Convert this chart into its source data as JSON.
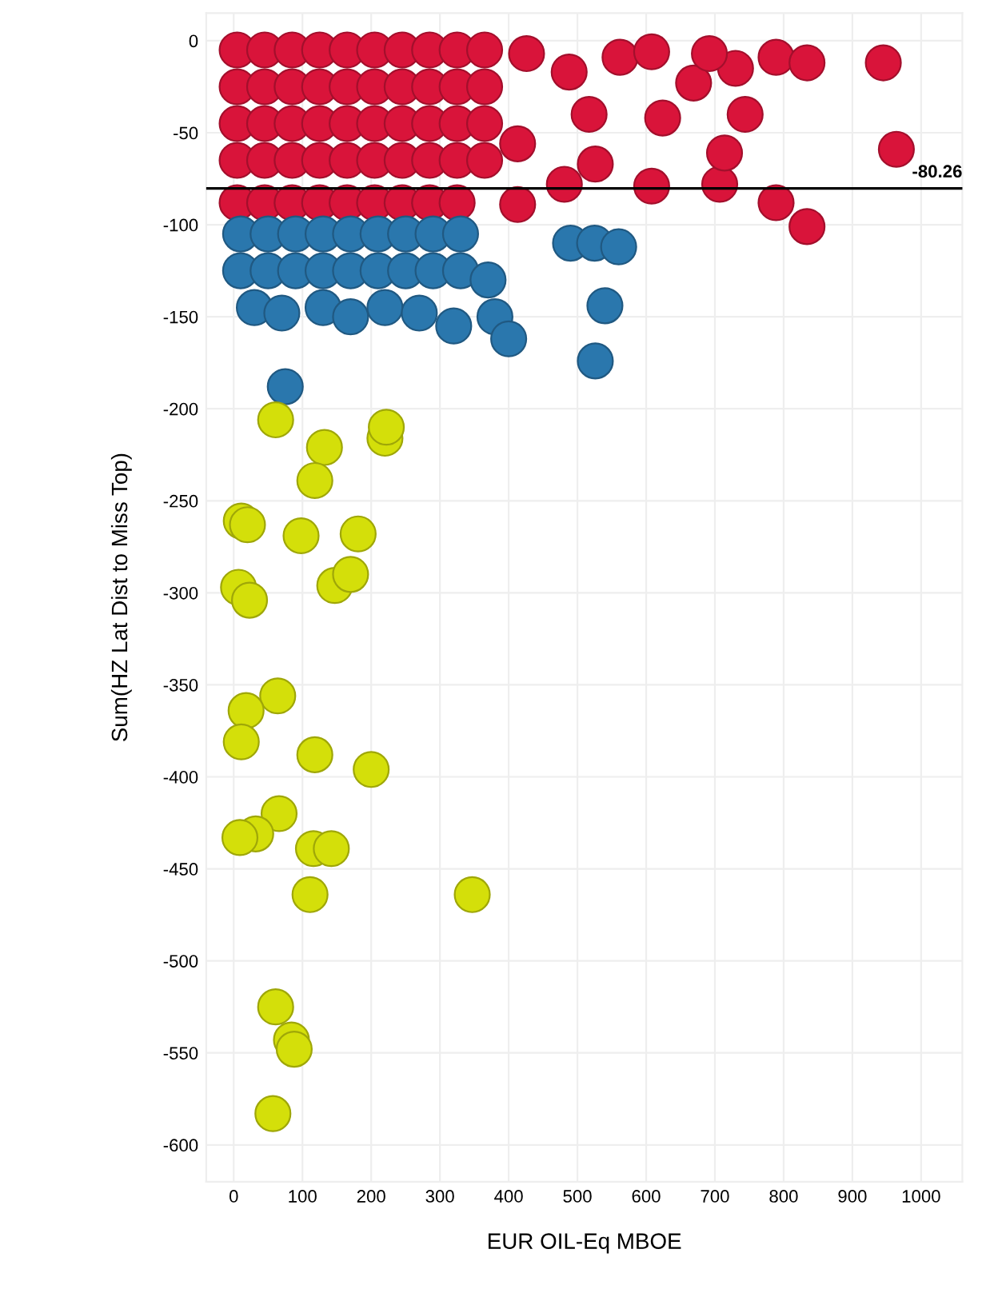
{
  "chart_data": {
    "type": "scatter",
    "xlabel": "EUR OIL-Eq MBOE",
    "ylabel": "Sum(HZ Lat Dist to Miss Top)",
    "xlim": [
      -40,
      1060
    ],
    "xticks": [
      0,
      100,
      200,
      300,
      400,
      500,
      600,
      700,
      800,
      900,
      1000
    ],
    "ylim": [
      -620,
      15
    ],
    "yticks": [
      0,
      -50,
      -100,
      -150,
      -200,
      -250,
      -300,
      -350,
      -400,
      -450,
      -500,
      -550,
      -600
    ],
    "grid": true,
    "marker": "circle",
    "ref_lines": [
      {
        "axis": "y",
        "value": -80.26,
        "label": "-80.26",
        "color": "#000000"
      }
    ],
    "series": [
      {
        "color": "#d9143a",
        "x": [
          5,
          45,
          85,
          125,
          165,
          205,
          245,
          285,
          325,
          365,
          5,
          45,
          85,
          125,
          165,
          205,
          245,
          285,
          325,
          365,
          5,
          45,
          85,
          125,
          165,
          205,
          245,
          285,
          325,
          365,
          5,
          45,
          85,
          125,
          165,
          205,
          245,
          285,
          325,
          365,
          5,
          45,
          85,
          125,
          165,
          205,
          245,
          285,
          325,
          789,
          834,
          945,
          964,
          789,
          834,
          707,
          608,
          714,
          744,
          730,
          624,
          562,
          608,
          669,
          526,
          481,
          517,
          488,
          426,
          413,
          413,
          692
        ],
        "values": [
          -5,
          -5,
          -5,
          -5,
          -5,
          -5,
          -5,
          -5,
          -5,
          -5,
          -25,
          -25,
          -25,
          -25,
          -25,
          -25,
          -25,
          -25,
          -25,
          -25,
          -45,
          -45,
          -45,
          -45,
          -45,
          -45,
          -45,
          -45,
          -45,
          -45,
          -65,
          -65,
          -65,
          -65,
          -65,
          -65,
          -65,
          -65,
          -65,
          -65,
          -88,
          -88,
          -88,
          -88,
          -88,
          -88,
          -88,
          -88,
          -88,
          -9,
          -12,
          -12,
          -59,
          -88,
          -101,
          -78,
          -79,
          -61,
          -40,
          -15,
          -42,
          -9,
          -6,
          -23,
          -67,
          -78,
          -40,
          -17,
          -7,
          -56,
          -89,
          -7
        ]
      },
      {
        "color": "#2a77ad",
        "x": [
          10,
          50,
          90,
          130,
          170,
          210,
          250,
          290,
          330,
          10,
          50,
          90,
          130,
          170,
          210,
          250,
          290,
          330,
          370,
          30,
          70,
          130,
          170,
          220,
          270,
          320,
          380,
          400,
          490,
          525,
          560,
          540,
          526,
          75
        ],
        "values": [
          -105,
          -105,
          -105,
          -105,
          -105,
          -105,
          -105,
          -105,
          -105,
          -125,
          -125,
          -125,
          -125,
          -125,
          -125,
          -125,
          -125,
          -125,
          -130,
          -145,
          -148,
          -145,
          -150,
          -145,
          -148,
          -155,
          -150,
          -162,
          -110,
          -110,
          -112,
          -144,
          -174,
          -188
        ]
      },
      {
        "color": "#d4df0a",
        "x": [
          61,
          132,
          220,
          222,
          118,
          11,
          20,
          98,
          181,
          147,
          170,
          7,
          23,
          64,
          18,
          11,
          118,
          200,
          66,
          32,
          9,
          116,
          142,
          111,
          347,
          61,
          84,
          88,
          57
        ],
        "values": [
          -206,
          -221,
          -216,
          -210,
          -239,
          -261,
          -263,
          -269,
          -268,
          -296,
          -290,
          -297,
          -304,
          -356,
          -364,
          -381,
          -388,
          -396,
          -420,
          -431,
          -433,
          -439,
          -439,
          -464,
          -464,
          -525,
          -543,
          -548,
          -583
        ]
      }
    ]
  }
}
